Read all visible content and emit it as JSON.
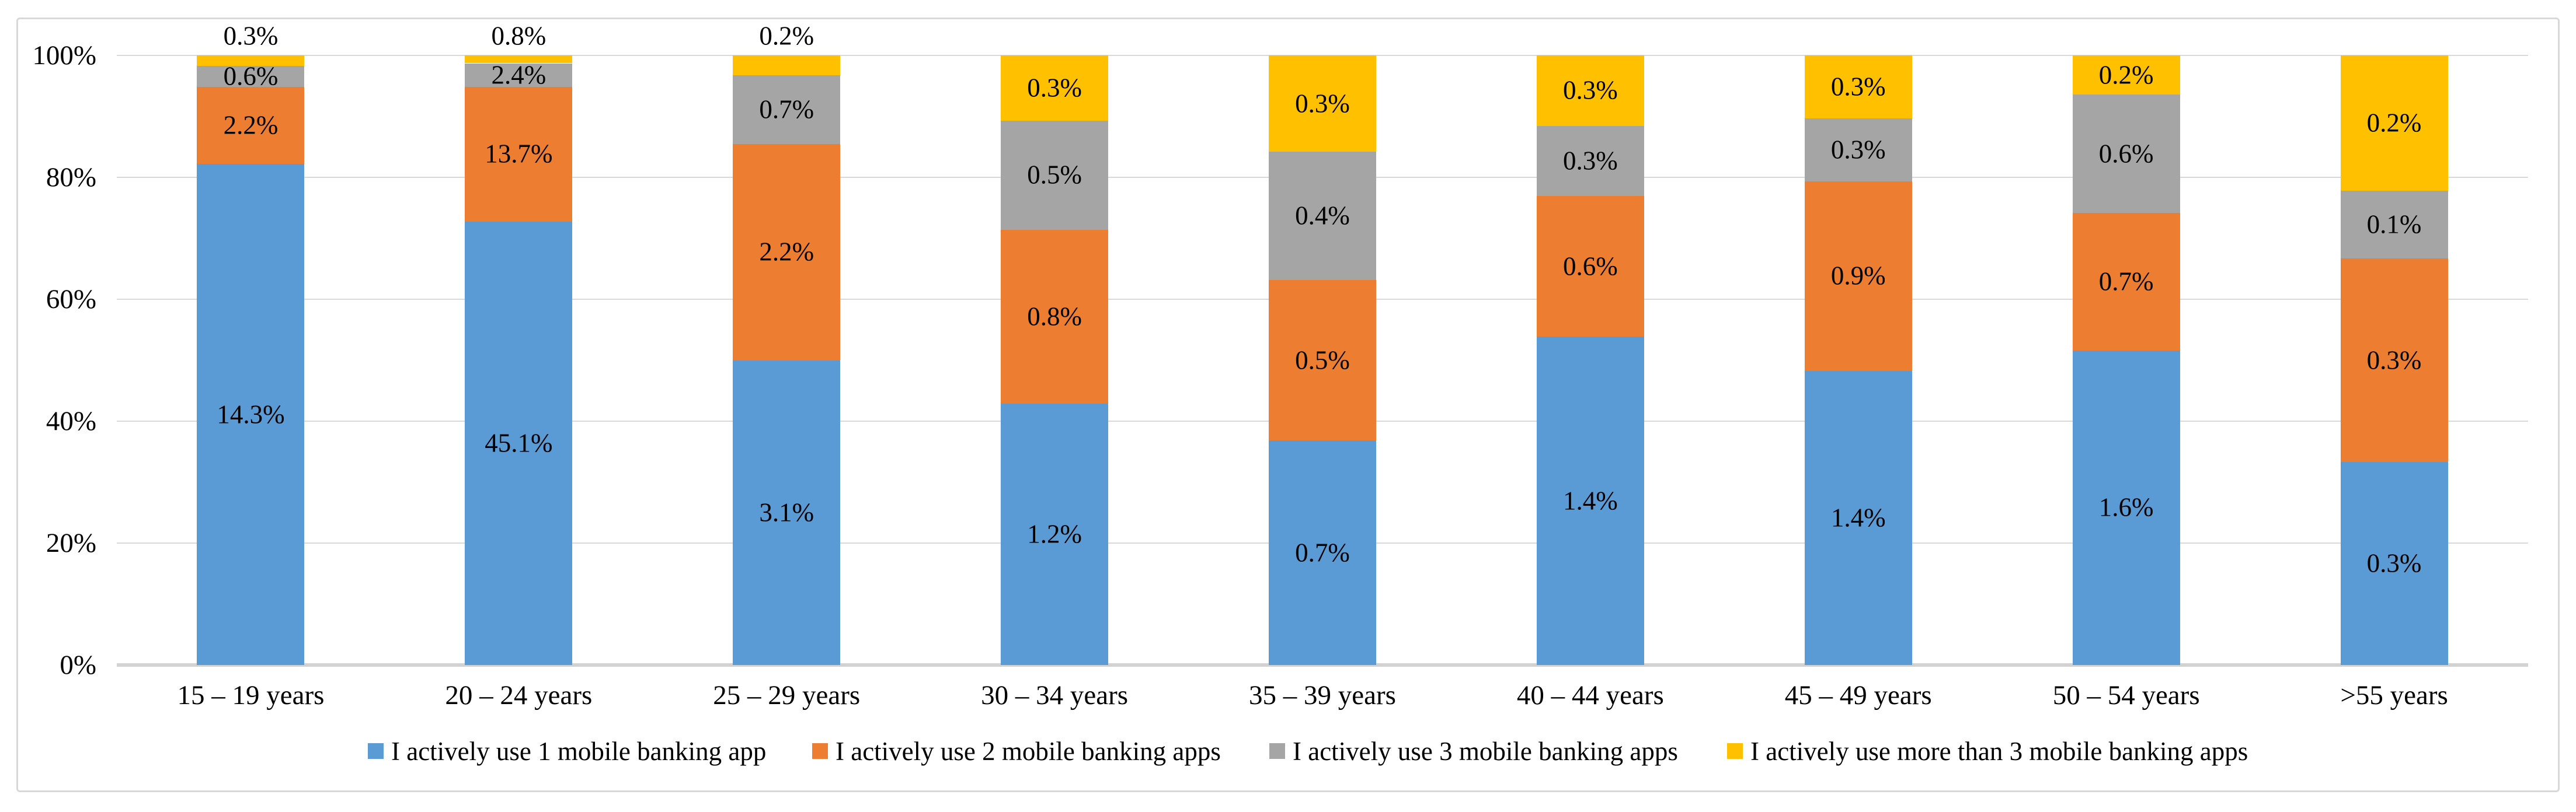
{
  "chart_data": {
    "type": "bar",
    "subtype": "stacked-100-percent",
    "title": "",
    "xlabel": "",
    "ylabel": "",
    "categories": [
      "15 – 19 years",
      "20 – 24 years",
      "25 – 29 years",
      "30 – 34 years",
      "35 – 39 years",
      "40 – 44 years",
      "45 – 49 years",
      "50 – 54 years",
      ">55 years"
    ],
    "series": [
      {
        "name": "I actively use 1 mobile banking app",
        "color": "#5B9BD5",
        "values": [
          14.3,
          45.1,
          3.1,
          1.2,
          0.7,
          1.4,
          1.4,
          1.6,
          0.3
        ]
      },
      {
        "name": "I actively use 2 mobile banking apps",
        "color": "#ED7D31",
        "values": [
          2.2,
          13.7,
          2.2,
          0.8,
          0.5,
          0.6,
          0.9,
          0.7,
          0.3
        ]
      },
      {
        "name": "I actively use 3 mobile banking apps",
        "color": "#A5A5A5",
        "values": [
          0.6,
          2.4,
          0.7,
          0.5,
          0.4,
          0.3,
          0.3,
          0.6,
          0.1
        ]
      },
      {
        "name": "I actively use more than 3 mobile banking apps",
        "color": "#FFC000",
        "values": [
          0.3,
          0.8,
          0.2,
          0.3,
          0.3,
          0.3,
          0.3,
          0.2,
          0.2
        ]
      }
    ],
    "data_labels": true,
    "data_label_suffix": "%",
    "y_ticks": [
      "0%",
      "20%",
      "40%",
      "60%",
      "80%",
      "100%"
    ],
    "ylim": [
      0,
      100
    ],
    "grid": true,
    "legend_position": "bottom"
  },
  "colors": {
    "background": "#FFFFFF",
    "frame_border": "#D8D8D8",
    "gridline": "#D9D9D9",
    "axis_line": "#D2D2D2",
    "label_text": "#000000"
  }
}
